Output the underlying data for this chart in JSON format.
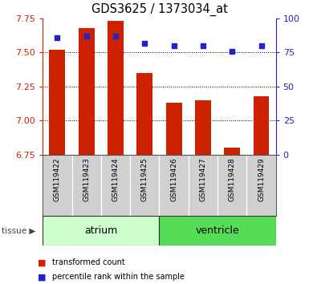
{
  "title": "GDS3625 / 1373034_at",
  "samples": [
    "GSM119422",
    "GSM119423",
    "GSM119424",
    "GSM119425",
    "GSM119426",
    "GSM119427",
    "GSM119428",
    "GSM119429"
  ],
  "transformed_counts": [
    7.52,
    7.68,
    7.73,
    7.35,
    7.13,
    7.15,
    6.8,
    7.18
  ],
  "percentile_ranks": [
    86,
    87,
    87,
    82,
    80,
    80,
    76,
    80
  ],
  "ylim_left": [
    6.75,
    7.75
  ],
  "ylim_right": [
    0,
    100
  ],
  "yticks_left": [
    6.75,
    7.0,
    7.25,
    7.5,
    7.75
  ],
  "yticks_right": [
    0,
    25,
    50,
    75,
    100
  ],
  "bar_color": "#cc2200",
  "dot_color": "#2222cc",
  "bar_width": 0.55,
  "atrium_color": "#ccffcc",
  "ventricle_color": "#55dd55",
  "tissue_groups": [
    {
      "label": "atrium",
      "indices": [
        0,
        1,
        2,
        3
      ]
    },
    {
      "label": "ventricle",
      "indices": [
        4,
        5,
        6,
        7
      ]
    }
  ],
  "tissue_label": "tissue",
  "legend_entries": [
    {
      "label": "transformed count",
      "color": "#cc2200"
    },
    {
      "label": "percentile rank within the sample",
      "color": "#2222cc"
    }
  ],
  "xlabels_bg": "#d0d0d0",
  "grid_color": "#888888",
  "plot_bg": "#ffffff"
}
